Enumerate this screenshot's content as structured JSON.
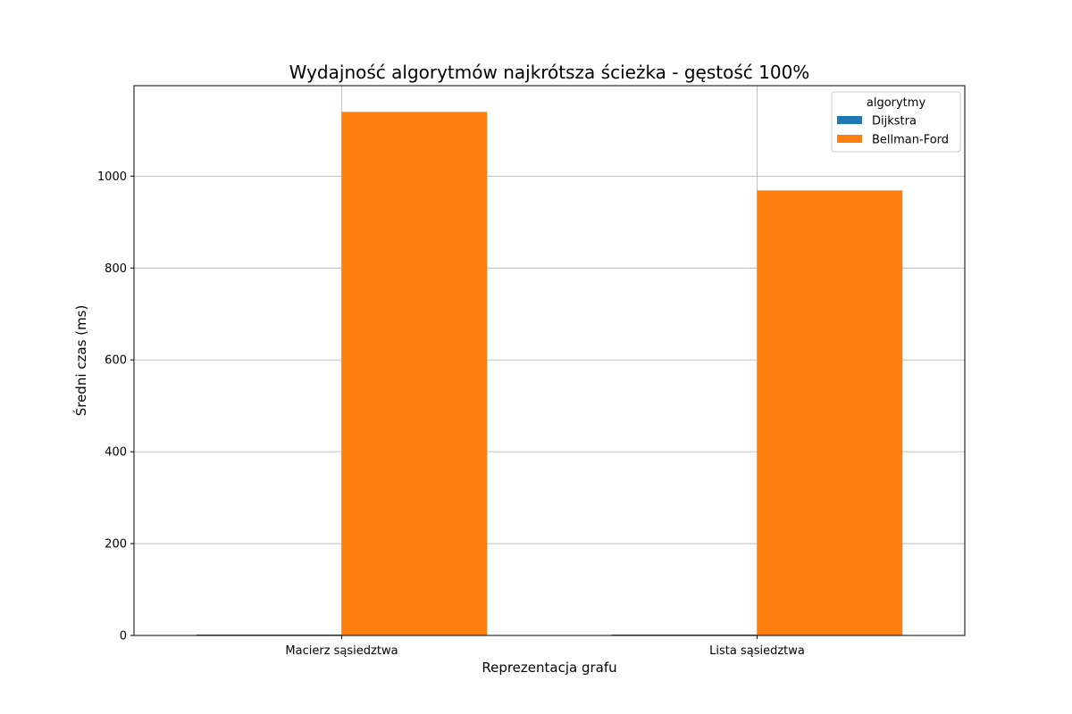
{
  "chart_data": {
    "type": "bar",
    "title": "Wydajność algorytmów najkrótsza ścieżka - gęstość 100%",
    "xlabel": "Reprezentacja grafu",
    "ylabel": "Średni czas (ms)",
    "categories": [
      "Macierz sąsiedztwa",
      "Lista sąsiedztwa"
    ],
    "ylim": [
      0,
      1197
    ],
    "yticks": [
      0,
      200,
      400,
      600,
      800,
      1000
    ],
    "grid": true,
    "legend": {
      "title": "algorytmy",
      "placement": "top-right"
    },
    "series": [
      {
        "name": "Dijkstra",
        "color": "#1f77b4",
        "values": [
          2,
          2
        ]
      },
      {
        "name": "Bellman-Ford",
        "color": "#ff7f0e",
        "values": [
          1140,
          969
        ]
      }
    ]
  }
}
